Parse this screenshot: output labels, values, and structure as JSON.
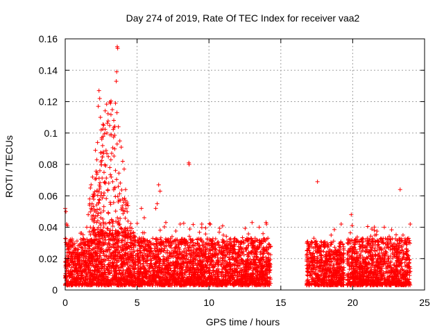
{
  "chart_data": {
    "type": "scatter",
    "title": "Day 274 of 2019, Rate Of TEC Index for receiver vaa2",
    "xlabel": "GPS time / hours",
    "ylabel": "ROTI / TECUs",
    "xlim": [
      0,
      25
    ],
    "ylim": [
      0,
      0.16
    ],
    "xticks": [
      0,
      5,
      10,
      15,
      20,
      25
    ],
    "yticks": [
      0,
      0.02,
      0.04,
      0.06,
      0.08,
      0.1,
      0.12,
      0.14,
      0.16
    ],
    "xtick_labels": [
      "0",
      "5",
      "10",
      "15",
      "20",
      "25"
    ],
    "ytick_labels": [
      "0",
      "0.02",
      "0.04",
      "0.06",
      "0.08",
      "0.1",
      "0.12",
      "0.14",
      "0.16"
    ],
    "grid": true,
    "marker": "+",
    "color": "#ff0000",
    "series": [
      {
        "name": "ROTI",
        "description_points": "sampled representative points from dense plot",
        "segments": [
          {
            "x_range": [
              0.0,
              1.0
            ],
            "dense_max": 0.03
          },
          {
            "x_range": [
              1.0,
              2.0
            ],
            "dense_max": 0.03
          },
          {
            "x_range": [
              2.0,
              4.9
            ],
            "dense_max": 0.035
          },
          {
            "x_range": [
              5.0,
              14.3
            ],
            "dense_max": 0.03
          },
          {
            "x_range": [
              16.8,
              19.4
            ],
            "dense_max": 0.028
          },
          {
            "x_range": [
              19.6,
              24.0
            ],
            "dense_max": 0.03
          }
        ],
        "notable": [
          {
            "x": 0.0,
            "y": 0.052
          },
          {
            "x": 0.05,
            "y": 0.05
          },
          {
            "x": 0.1,
            "y": 0.042
          },
          {
            "x": 0.15,
            "y": 0.041
          },
          {
            "x": 1.1,
            "y": 0.03
          },
          {
            "x": 1.5,
            "y": 0.04
          },
          {
            "x": 1.6,
            "y": 0.048
          },
          {
            "x": 1.7,
            "y": 0.058
          },
          {
            "x": 1.75,
            "y": 0.065
          },
          {
            "x": 1.8,
            "y": 0.067
          },
          {
            "x": 1.9,
            "y": 0.072
          },
          {
            "x": 2.0,
            "y": 0.06
          },
          {
            "x": 2.1,
            "y": 0.089
          },
          {
            "x": 2.2,
            "y": 0.083
          },
          {
            "x": 2.25,
            "y": 0.094
          },
          {
            "x": 2.3,
            "y": 0.117
          },
          {
            "x": 2.35,
            "y": 0.127
          },
          {
            "x": 2.4,
            "y": 0.122
          },
          {
            "x": 2.45,
            "y": 0.11
          },
          {
            "x": 2.5,
            "y": 0.102
          },
          {
            "x": 2.55,
            "y": 0.097
          },
          {
            "x": 2.6,
            "y": 0.092
          },
          {
            "x": 2.65,
            "y": 0.088
          },
          {
            "x": 2.7,
            "y": 0.075
          },
          {
            "x": 2.8,
            "y": 0.068
          },
          {
            "x": 2.9,
            "y": 0.1
          },
          {
            "x": 3.0,
            "y": 0.085
          },
          {
            "x": 3.1,
            "y": 0.078
          },
          {
            "x": 3.2,
            "y": 0.072
          },
          {
            "x": 3.3,
            "y": 0.069
          },
          {
            "x": 3.4,
            "y": 0.065
          },
          {
            "x": 3.5,
            "y": 0.119
          },
          {
            "x": 3.55,
            "y": 0.133
          },
          {
            "x": 3.58,
            "y": 0.139
          },
          {
            "x": 3.62,
            "y": 0.155
          },
          {
            "x": 3.65,
            "y": 0.154
          },
          {
            "x": 3.6,
            "y": 0.113
          },
          {
            "x": 3.7,
            "y": 0.104
          },
          {
            "x": 3.8,
            "y": 0.095
          },
          {
            "x": 3.9,
            "y": 0.091
          },
          {
            "x": 4.0,
            "y": 0.082
          },
          {
            "x": 4.1,
            "y": 0.077
          },
          {
            "x": 4.2,
            "y": 0.064
          },
          {
            "x": 4.3,
            "y": 0.056
          },
          {
            "x": 4.5,
            "y": 0.04
          },
          {
            "x": 5.3,
            "y": 0.052
          },
          {
            "x": 5.5,
            "y": 0.046
          },
          {
            "x": 6.5,
            "y": 0.067
          },
          {
            "x": 6.6,
            "y": 0.063
          },
          {
            "x": 6.4,
            "y": 0.055
          },
          {
            "x": 6.3,
            "y": 0.052
          },
          {
            "x": 7.0,
            "y": 0.043
          },
          {
            "x": 8.0,
            "y": 0.042
          },
          {
            "x": 8.6,
            "y": 0.081
          },
          {
            "x": 8.62,
            "y": 0.08
          },
          {
            "x": 9.5,
            "y": 0.042
          },
          {
            "x": 11.0,
            "y": 0.035
          },
          {
            "x": 13.0,
            "y": 0.043
          },
          {
            "x": 13.5,
            "y": 0.04
          },
          {
            "x": 14.0,
            "y": 0.042
          },
          {
            "x": 17.3,
            "y": 0.033
          },
          {
            "x": 17.55,
            "y": 0.069
          },
          {
            "x": 18.5,
            "y": 0.035
          },
          {
            "x": 19.2,
            "y": 0.042
          },
          {
            "x": 19.9,
            "y": 0.048
          },
          {
            "x": 21.5,
            "y": 0.038
          },
          {
            "x": 22.2,
            "y": 0.04
          },
          {
            "x": 23.3,
            "y": 0.064
          },
          {
            "x": 23.5,
            "y": 0.035
          },
          {
            "x": 24.0,
            "y": 0.042
          }
        ]
      }
    ]
  }
}
